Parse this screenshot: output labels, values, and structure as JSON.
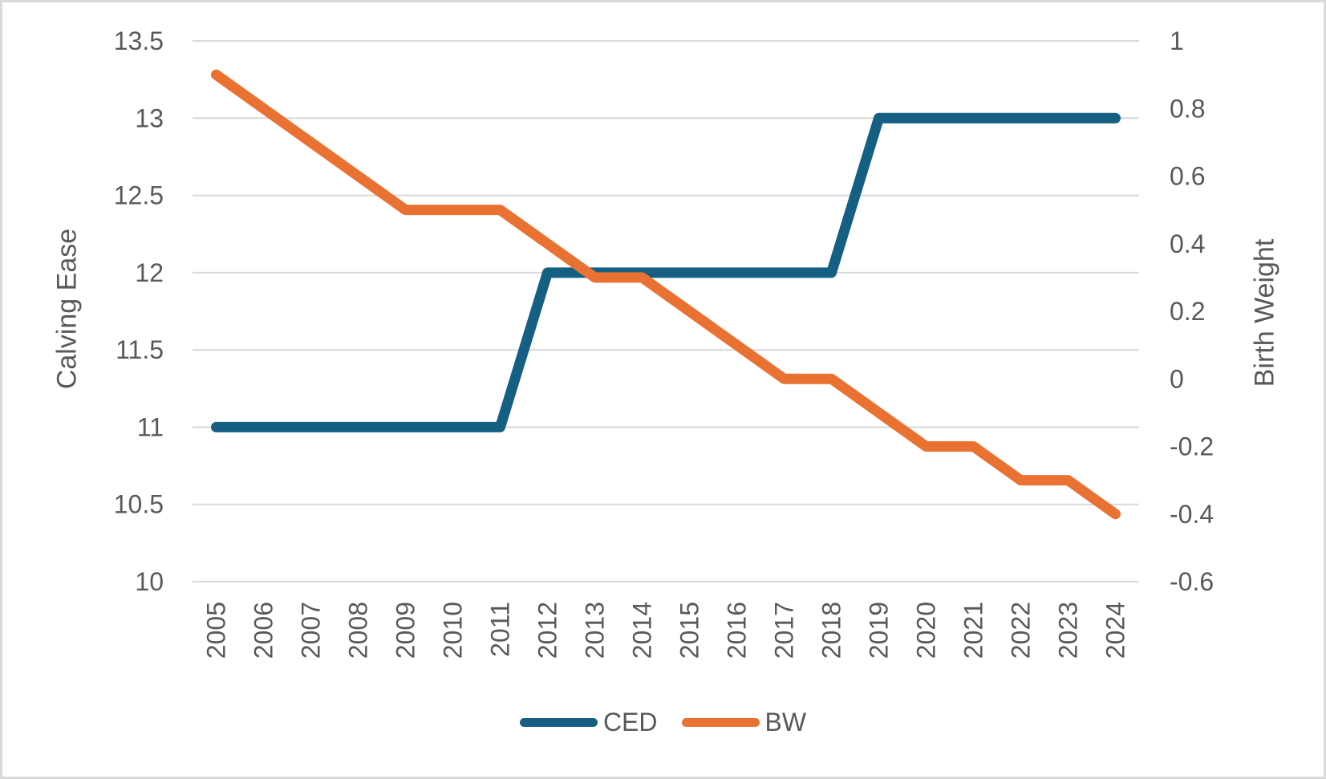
{
  "chart_data": {
    "type": "line",
    "title": "",
    "categories": [
      "2005",
      "2006",
      "2007",
      "2008",
      "2009",
      "2010",
      "2011",
      "2012",
      "2013",
      "2014",
      "2015",
      "2016",
      "2017",
      "2018",
      "2019",
      "2020",
      "2021",
      "2022",
      "2023",
      "2024"
    ],
    "series": [
      {
        "name": "CED",
        "axis": "left",
        "color": "#156082",
        "values": [
          11,
          11,
          11,
          11,
          11,
          11,
          11,
          12,
          12,
          12,
          12,
          12,
          12,
          12,
          13,
          13,
          13,
          13,
          13,
          13
        ]
      },
      {
        "name": "BW",
        "axis": "right",
        "color": "#E97132",
        "values": [
          0.9,
          0.8,
          0.7,
          0.6,
          0.5,
          0.5,
          0.5,
          0.4,
          0.3,
          0.3,
          0.2,
          0.1,
          0,
          0,
          -0.1,
          -0.2,
          -0.2,
          -0.3,
          -0.3,
          -0.4
        ]
      }
    ],
    "left_axis": {
      "label": "Calving Ease",
      "min": 10,
      "max": 13.5,
      "tick_step": 0.5,
      "ticks": [
        "13.5",
        "13",
        "12.5",
        "12",
        "11.5",
        "11",
        "10.5",
        "10"
      ]
    },
    "right_axis": {
      "label": "Birth Weight",
      "min": -0.6,
      "max": 1,
      "tick_step": 0.2,
      "ticks": [
        "1",
        "0.8",
        "0.6",
        "0.4",
        "0.2",
        "0",
        "-0.2",
        "-0.4",
        "-0.6"
      ]
    },
    "x_axis": {
      "label_rotation_deg": -90
    },
    "grid": "horizontal",
    "legend": {
      "position": "bottom",
      "items": [
        {
          "label": "CED",
          "color": "#156082"
        },
        {
          "label": "BW",
          "color": "#E97132"
        }
      ]
    }
  },
  "colors": {
    "grid": "#D9D9D9",
    "axis_line": "#D9D9D9",
    "text": "#595959",
    "background": "#FFFFFF",
    "frame_border": "#D9D9D9"
  }
}
